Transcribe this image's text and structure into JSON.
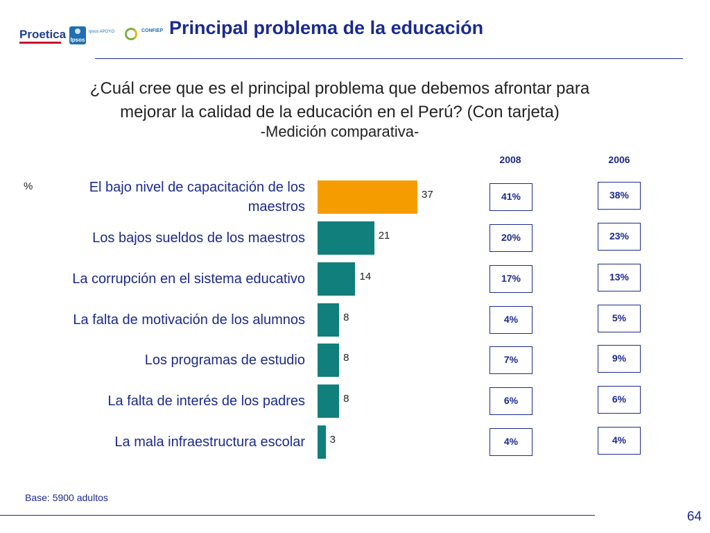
{
  "header": {
    "title": "Principal problema de la educación",
    "logos": {
      "proetica": "Proetica",
      "ipsos": "Ipsos",
      "ipsos_apoyo": "Ipsos APOYO",
      "confiep": "CONFIEP"
    }
  },
  "question": {
    "line1": "¿Cuál cree que es el principal problema que debemos afrontar para",
    "line2": "mejorar la calidad de la educación en el Perú? (Con tarjeta)",
    "subtitle": "-Medición comparativa-"
  },
  "chart_data": {
    "type": "bar",
    "orientation": "horizontal",
    "unit": "%",
    "categories": [
      "El bajo nivel de capacitación de los maestros",
      "Los bajos sueldos de los maestros",
      "La corrupción en el sistema educativo",
      "La falta de motivación de los alumnos",
      "Los programas de estudio",
      "La falta de interés de los padres",
      "La mala infraestructura escolar"
    ],
    "values": [
      37,
      21,
      14,
      8,
      8,
      8,
      3
    ],
    "highlight_index": 0,
    "colors": {
      "highlight": "#f59c00",
      "default": "#117f7c"
    },
    "comparison": {
      "headers": [
        "2008",
        "2006"
      ],
      "col_2008": [
        "41%",
        "20%",
        "17%",
        "4%",
        "7%",
        "6%",
        "4%"
      ],
      "col_2006": [
        "38%",
        "23%",
        "13%",
        "5%",
        "9%",
        "6%",
        "4%"
      ]
    }
  },
  "footer": {
    "base": "Base: 5900 adultos",
    "page_number": "64"
  }
}
